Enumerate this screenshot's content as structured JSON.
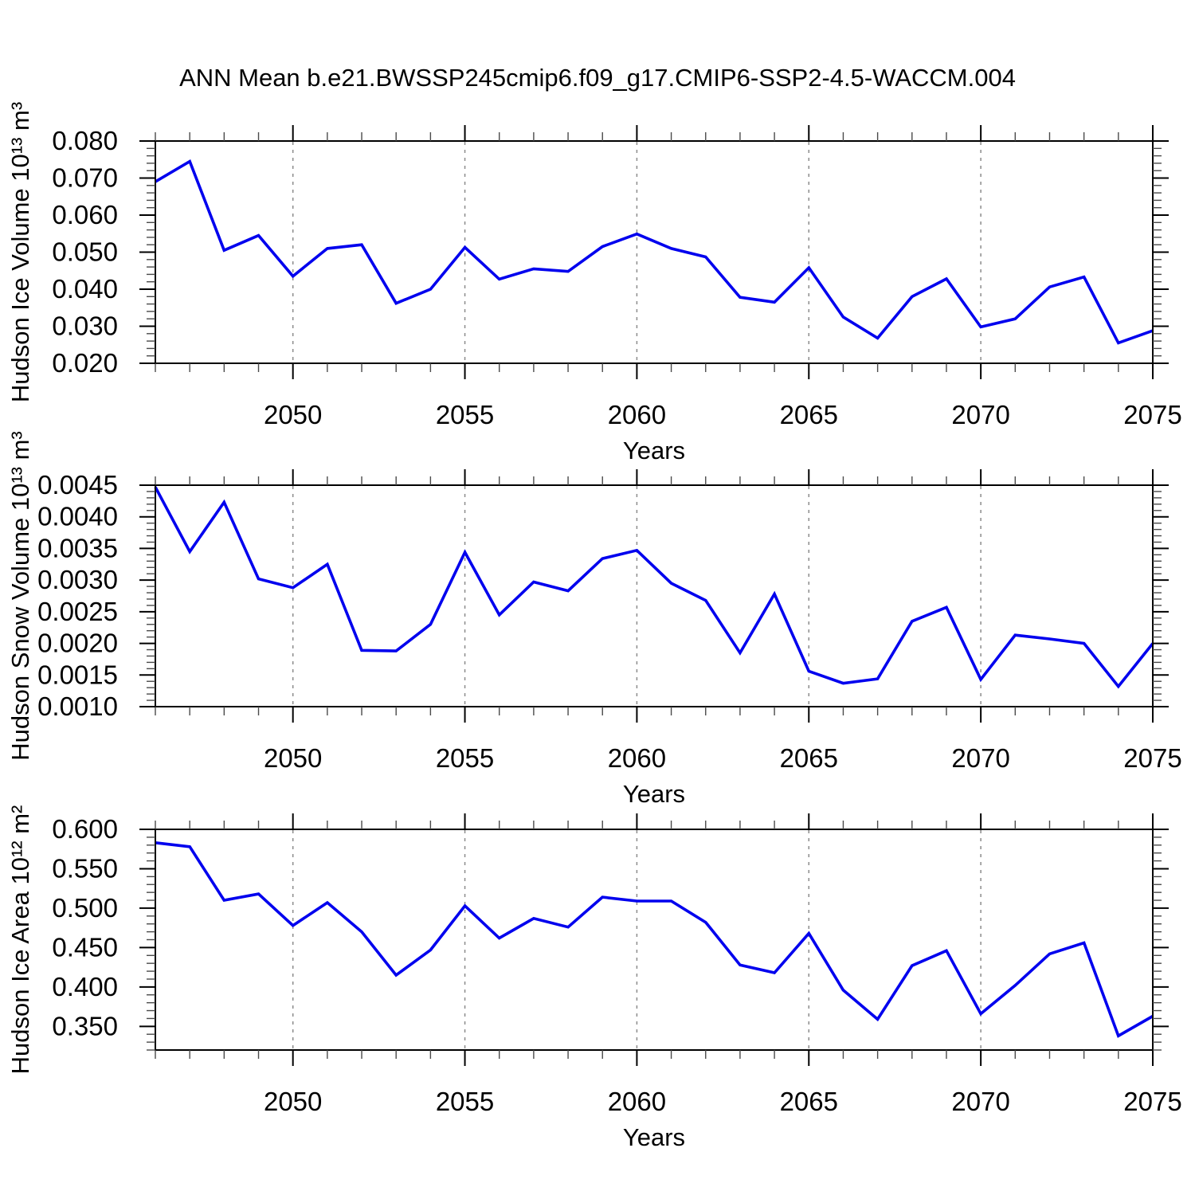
{
  "title": "ANN Mean b.e21.BWSSP245cmip6.f09_g17.CMIP6-SSP2-4.5-WACCM.004",
  "line_color": "#0000ee",
  "grid_color": "#8c8c8c",
  "chart_data": [
    {
      "type": "line",
      "name": "hudson-ice-volume",
      "ylabel": "Hudson Ice Volume 10¹³ m³",
      "xlabel": "Years",
      "line_color": "#0000ee",
      "xlim": [
        2046,
        2075
      ],
      "xticks": [
        2050,
        2055,
        2060,
        2065,
        2070,
        2075
      ],
      "xminor_step": 1,
      "grid_x": [
        2050,
        2055,
        2060,
        2065,
        2070
      ],
      "ylim": [
        0.02,
        0.08
      ],
      "ytick_start": 0.02,
      "ytick_step": 0.01,
      "yminor_step": 0.002,
      "ytick_decimals": 3,
      "x": [
        2046,
        2047,
        2048,
        2049,
        2050,
        2051,
        2052,
        2053,
        2054,
        2055,
        2056,
        2057,
        2058,
        2059,
        2060,
        2061,
        2062,
        2063,
        2064,
        2065,
        2066,
        2067,
        2068,
        2069,
        2070,
        2071,
        2072,
        2073,
        2074,
        2075
      ],
      "values": [
        0.069,
        0.0745,
        0.0505,
        0.0545,
        0.0435,
        0.051,
        0.052,
        0.0362,
        0.04,
        0.0513,
        0.0427,
        0.0455,
        0.0448,
        0.0515,
        0.0549,
        0.051,
        0.0487,
        0.0378,
        0.0365,
        0.0458,
        0.0325,
        0.0268,
        0.038,
        0.0428,
        0.0298,
        0.032,
        0.0406,
        0.0433,
        0.0255,
        0.0288
      ]
    },
    {
      "type": "line",
      "name": "hudson-snow-volume",
      "ylabel": "Hudson Snow Volume 10¹³ m³",
      "xlabel": "Years",
      "line_color": "#0000ee",
      "xlim": [
        2046,
        2075
      ],
      "xticks": [
        2050,
        2055,
        2060,
        2065,
        2070,
        2075
      ],
      "xminor_step": 1,
      "grid_x": [
        2050,
        2055,
        2060,
        2065,
        2070
      ],
      "ylim": [
        0.001,
        0.0045
      ],
      "ytick_start": 0.001,
      "ytick_step": 0.0005,
      "yminor_step": 0.0001,
      "ytick_decimals": 4,
      "x": [
        2046,
        2047,
        2048,
        2049,
        2050,
        2051,
        2052,
        2053,
        2054,
        2055,
        2056,
        2057,
        2058,
        2059,
        2060,
        2061,
        2062,
        2063,
        2064,
        2065,
        2066,
        2067,
        2068,
        2069,
        2070,
        2071,
        2072,
        2073,
        2074,
        2075
      ],
      "values": [
        0.00447,
        0.00345,
        0.00423,
        0.00302,
        0.00288,
        0.00325,
        0.00189,
        0.00188,
        0.0023,
        0.00344,
        0.00245,
        0.00297,
        0.00283,
        0.00334,
        0.00347,
        0.00295,
        0.00268,
        0.00185,
        0.00278,
        0.00156,
        0.00137,
        0.00144,
        0.00235,
        0.00257,
        0.00143,
        0.00213,
        0.00207,
        0.002,
        0.00132,
        0.002
      ]
    },
    {
      "type": "line",
      "name": "hudson-ice-area",
      "ylabel": "Hudson Ice Area 10¹² m²",
      "xlabel": "Years",
      "line_color": "#0000ee",
      "xlim": [
        2046,
        2075
      ],
      "xticks": [
        2050,
        2055,
        2060,
        2065,
        2070,
        2075
      ],
      "xminor_step": 1,
      "grid_x": [
        2050,
        2055,
        2060,
        2065,
        2070
      ],
      "ylim": [
        0.32,
        0.6
      ],
      "ytick_start": 0.35,
      "ytick_step": 0.05,
      "yminor_step": 0.01,
      "ytick_decimals": 3,
      "x": [
        2046,
        2047,
        2048,
        2049,
        2050,
        2051,
        2052,
        2053,
        2054,
        2055,
        2056,
        2057,
        2058,
        2059,
        2060,
        2061,
        2062,
        2063,
        2064,
        2065,
        2066,
        2067,
        2068,
        2069,
        2070,
        2071,
        2072,
        2073,
        2074,
        2075
      ],
      "values": [
        0.583,
        0.578,
        0.51,
        0.518,
        0.478,
        0.507,
        0.47,
        0.415,
        0.447,
        0.503,
        0.462,
        0.487,
        0.476,
        0.514,
        0.509,
        0.509,
        0.482,
        0.428,
        0.418,
        0.468,
        0.396,
        0.359,
        0.427,
        0.446,
        0.366,
        0.402,
        0.442,
        0.456,
        0.338,
        0.363
      ]
    }
  ]
}
